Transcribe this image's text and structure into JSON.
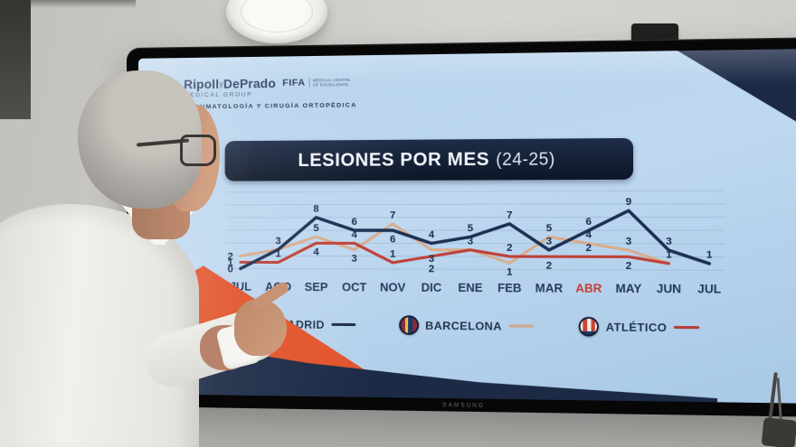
{
  "room": {
    "tv_brand": "SAMSUNG"
  },
  "slide": {
    "logo": {
      "brand_main": "Ripoll",
      "brand_y": "y",
      "brand_sub": "DePrado",
      "group_line": "MEDICAL GROUP",
      "fifa": "FIFA",
      "fifa_caption": "MEDICAL CENTRE OF EXCELLENCE",
      "tagline": "TRAUMATOLOGÍA Y CIRUGÍA ORTOPÉDICA"
    },
    "title": "LESIONES POR MES",
    "title_season": "(24-25)"
  },
  "chart_data": {
    "type": "line",
    "title": "LESIONES POR MES (24-25)",
    "categories": [
      "JUL",
      "AGO",
      "SEP",
      "OCT",
      "NOV",
      "DIC",
      "ENE",
      "FEB",
      "MAR",
      "ABR",
      "MAY",
      "JUN",
      "JUL"
    ],
    "highlighted_category": "ABR",
    "highlight_color": "#c2403a",
    "axis_label_color": "#27395a",
    "data_label_color": "#1b2b4a",
    "grid": true,
    "ylim": [
      0,
      12
    ],
    "grid_step": 2,
    "legend_position": "bottom",
    "series": [
      {
        "name": "R. MADRID",
        "color": "#1d3053",
        "values": [
          0,
          3,
          8,
          6,
          6,
          4,
          5,
          7,
          3,
          6,
          9,
          3,
          1
        ]
      },
      {
        "name": "BARCELONA",
        "color": "#d7ad8e",
        "values": [
          2,
          3,
          5,
          3,
          7,
          3,
          3,
          1,
          5,
          4,
          3,
          1,
          null
        ]
      },
      {
        "name": "ATLÉTICO",
        "color": "#bf4038",
        "values": [
          1,
          1,
          4,
          4,
          1,
          2,
          3,
          2,
          2,
          2,
          2,
          1,
          null
        ]
      }
    ]
  },
  "legend": {
    "items": [
      {
        "label": "R. MADRID",
        "crest": "real-madrid-crest",
        "line_color": "#1d2e4e"
      },
      {
        "label": "BARCELONA",
        "crest": "barcelona-crest",
        "line_color": "#cfa88a"
      },
      {
        "label": "ATLÉTICO",
        "crest": "atletico-crest",
        "line_color": "#b5403c"
      }
    ]
  }
}
